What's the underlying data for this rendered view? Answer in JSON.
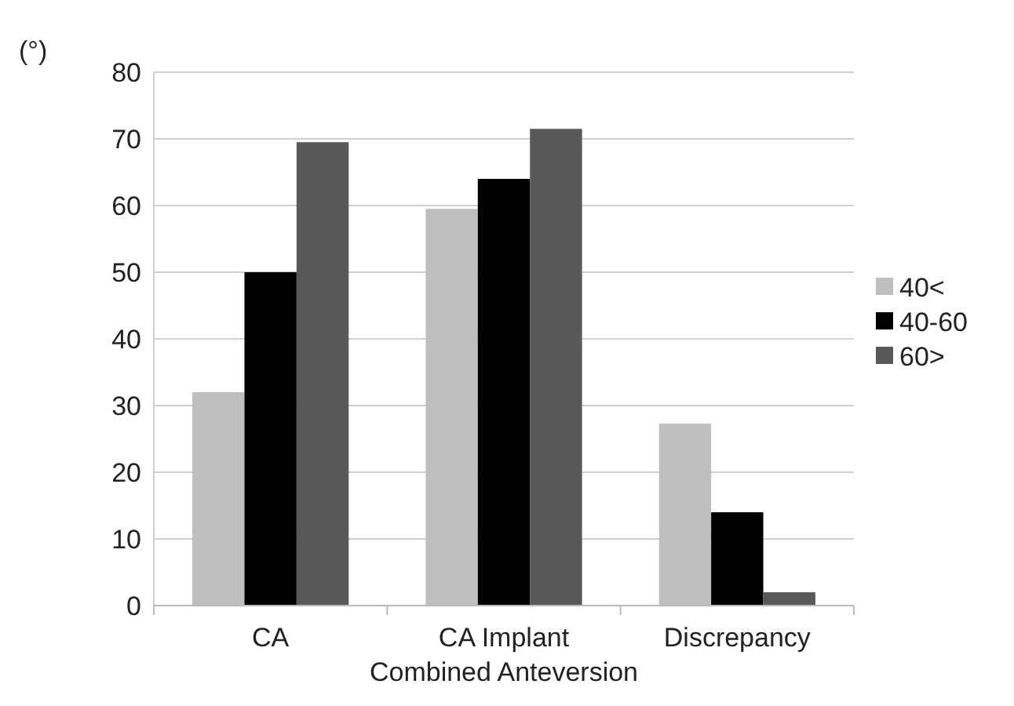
{
  "chart_data": {
    "type": "bar",
    "ylabel": "(°)",
    "xlabel": "Combined Anteversion",
    "categories": [
      "CA",
      "CA Implant",
      "Discrepancy"
    ],
    "series": [
      {
        "name": "40<",
        "color": "#bfbfbf",
        "values": [
          32,
          59.5,
          27.3
        ]
      },
      {
        "name": "40-60",
        "color": "#000000",
        "values": [
          50,
          64,
          14
        ]
      },
      {
        "name": "60>",
        "color": "#595959",
        "values": [
          69.5,
          71.5,
          2
        ]
      }
    ],
    "ylim": [
      0,
      80
    ],
    "yticks": [
      0,
      10,
      20,
      30,
      40,
      50,
      60,
      70,
      80
    ],
    "grid": "y",
    "legend": "right"
  }
}
